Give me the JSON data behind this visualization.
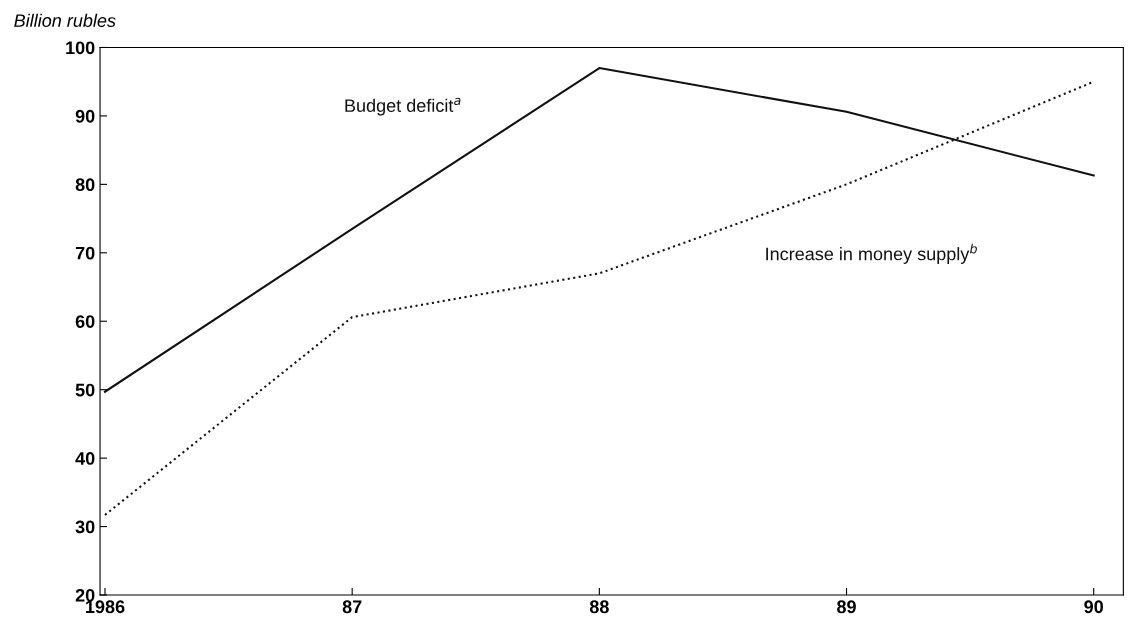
{
  "chart_data": {
    "type": "line",
    "ylabel": "Billion rubles",
    "categories": [
      "1986",
      "87",
      "88",
      "89",
      "90"
    ],
    "series": [
      {
        "name": "Budget deficit$^{a}$",
        "color": "#111111",
        "values": [
          49.7,
          73.5,
          97,
          90.6,
          81.3
        ],
        "line_style": "solid"
      },
      {
        "name": "Increase in money supply$^{b}$",
        "color": "#111111",
        "values": [
          31.7,
          60.6,
          67,
          80,
          95
        ],
        "line_style": "dotted"
      }
    ],
    "ylim": [
      20,
      100
    ],
    "yticks": [
      20,
      30,
      40,
      50,
      60,
      70,
      80,
      90,
      100
    ],
    "grid": false,
    "legend": false,
    "marker": "none"
  }
}
